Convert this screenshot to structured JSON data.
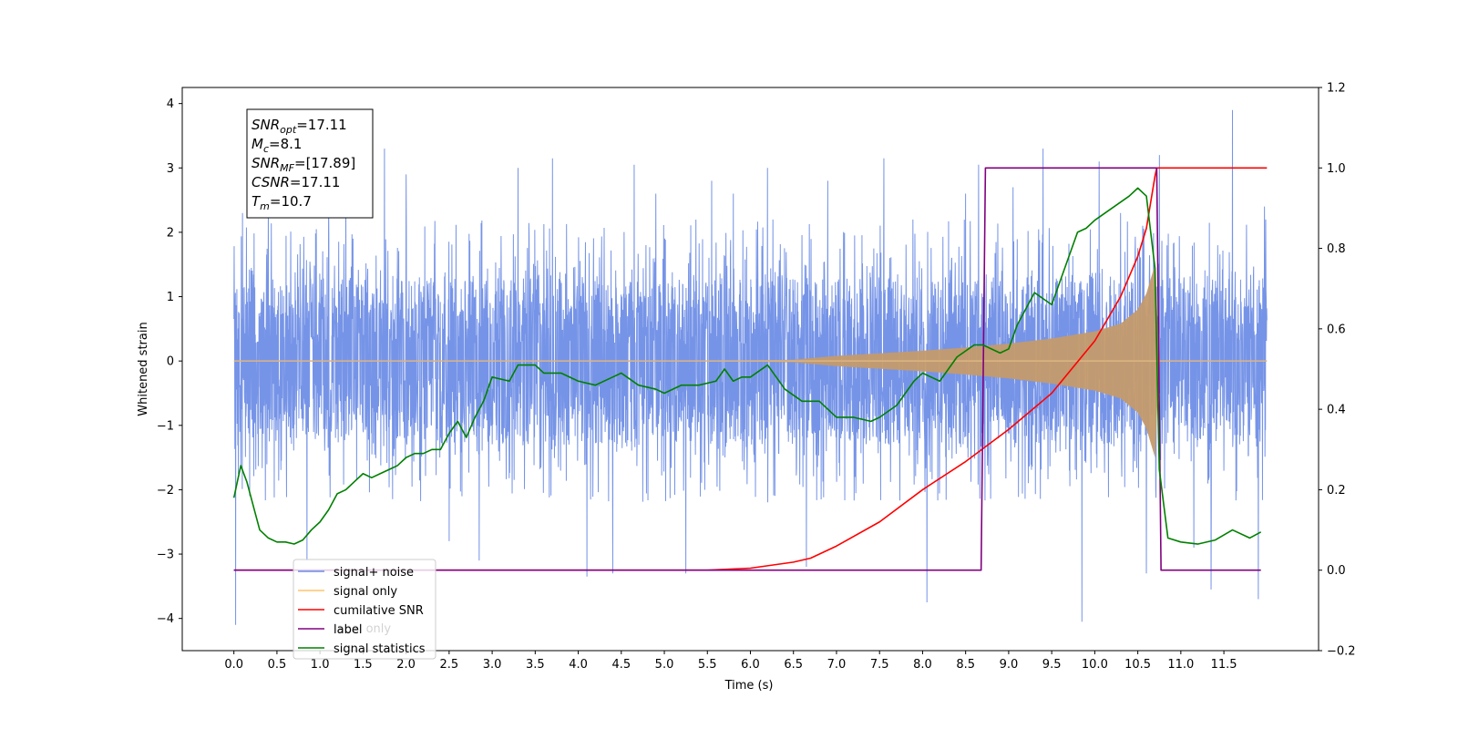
{
  "chart_data": {
    "type": "line",
    "xlabel": "Time (s)",
    "ylabel": "Whitened strain",
    "xlim": [
      -0.6,
      12.6
    ],
    "ylim_left": [
      -4.5,
      4.25
    ],
    "ylim_right": [
      -0.2,
      1.2
    ],
    "x_ticks": [
      0.0,
      0.5,
      1.0,
      1.5,
      2.0,
      2.5,
      3.0,
      3.5,
      4.0,
      4.5,
      5.0,
      5.5,
      6.0,
      6.5,
      7.0,
      7.5,
      8.0,
      8.5,
      9.0,
      9.5,
      10.0,
      10.5,
      11.0,
      11.5
    ],
    "x_tick_labels": [
      "0.0",
      "0.5",
      "1.0",
      "1.5",
      "2.0",
      "2.5",
      "3.0",
      "3.5",
      "4.0",
      "4.5",
      "5.0",
      "5.5",
      "6.0",
      "6.5",
      "7.0",
      "7.5",
      "8.0",
      "8.5",
      "9.0",
      "9.5",
      "10.0",
      "10.5",
      "11.0",
      "11.5"
    ],
    "y_ticks_left": [
      -4,
      -3,
      -2,
      -1,
      0,
      1,
      2,
      3,
      4
    ],
    "y_tick_labels_left": [
      "−4",
      "−3",
      "−2",
      "−1",
      "0",
      "1",
      "2",
      "3",
      "4"
    ],
    "y_ticks_right": [
      -0.2,
      0.0,
      0.2,
      0.4,
      0.6,
      0.8,
      1.0,
      1.2
    ],
    "y_tick_labels_right": [
      "−0.2",
      "0.0",
      "0.2",
      "0.4",
      "0.6",
      "0.8",
      "1.0",
      "1.2"
    ],
    "grid": false,
    "legend_position": "lower-left",
    "legend": [
      {
        "label": "signal+ noise",
        "color": "#6f8ee6"
      },
      {
        "label": "signal only",
        "color": "#ffc46b"
      },
      {
        "label": "cumilative SNR",
        "color": "#ff0000"
      },
      {
        "label": "label",
        "color": "#800080"
      },
      {
        "label": "signal statistics",
        "color": "#008000"
      }
    ],
    "hidden_legend_text": "label only",
    "annotation_lines": [
      {
        "base": "SNR",
        "sub": "opt",
        "rest": "=17.11"
      },
      {
        "base": "M",
        "sub": "c",
        "rest": "=8.1"
      },
      {
        "base": "SNR",
        "sub": "MF",
        "rest": "=[17.89]"
      },
      {
        "base": "CSNR",
        "sub": "",
        "rest": "=17.11"
      },
      {
        "base": "T",
        "sub": "m",
        "rest": "=10.7"
      }
    ],
    "series": [
      {
        "name": "signal+ noise",
        "axis": "left",
        "color": "#6f8ee6",
        "x_range": [
          0.0,
          12.0
        ],
        "typical_envelope": [
          -1.3,
          1.3
        ],
        "spikes": [
          {
            "x": 0.02,
            "y": -4.1
          },
          {
            "x": 0.1,
            "y": 2.3
          },
          {
            "x": 0.4,
            "y": 2.5
          },
          {
            "x": 0.85,
            "y": -3.1
          },
          {
            "x": 1.1,
            "y": 2.5
          },
          {
            "x": 1.3,
            "y": 3.0
          },
          {
            "x": 1.75,
            "y": 3.3
          },
          {
            "x": 2.0,
            "y": 2.9
          },
          {
            "x": 2.5,
            "y": -2.8
          },
          {
            "x": 2.85,
            "y": -3.1
          },
          {
            "x": 3.3,
            "y": 3.0
          },
          {
            "x": 3.7,
            "y": 3.15
          },
          {
            "x": 4.1,
            "y": -3.35
          },
          {
            "x": 4.4,
            "y": -3.3
          },
          {
            "x": 4.65,
            "y": 3.05
          },
          {
            "x": 4.9,
            "y": 2.6
          },
          {
            "x": 5.25,
            "y": -3.3
          },
          {
            "x": 5.55,
            "y": 2.8
          },
          {
            "x": 5.8,
            "y": 2.6
          },
          {
            "x": 6.2,
            "y": 3.0
          },
          {
            "x": 6.65,
            "y": -3.2
          },
          {
            "x": 6.9,
            "y": 2.8
          },
          {
            "x": 7.55,
            "y": 3.15
          },
          {
            "x": 8.05,
            "y": -3.75
          },
          {
            "x": 8.5,
            "y": 2.6
          },
          {
            "x": 8.65,
            "y": 3.05
          },
          {
            "x": 9.05,
            "y": 2.7
          },
          {
            "x": 9.4,
            "y": 3.3
          },
          {
            "x": 9.85,
            "y": -4.05
          },
          {
            "x": 10.05,
            "y": 3.1
          },
          {
            "x": 10.3,
            "y": 2.3
          },
          {
            "x": 10.6,
            "y": -3.3
          },
          {
            "x": 10.75,
            "y": 3.2
          },
          {
            "x": 11.15,
            "y": -2.9
          },
          {
            "x": 11.35,
            "y": -3.55
          },
          {
            "x": 11.6,
            "y": 3.9
          },
          {
            "x": 11.9,
            "y": -3.7
          },
          {
            "x": 11.97,
            "y": 2.4
          }
        ]
      },
      {
        "name": "signal only",
        "axis": "left",
        "color": "#ffc46b",
        "x": [
          0.0,
          5.5,
          6.5,
          7.0,
          7.5,
          8.0,
          8.5,
          9.0,
          9.5,
          10.0,
          10.3,
          10.5,
          10.6,
          10.7,
          10.75,
          12.0
        ],
        "amplitude": [
          0.0,
          0.0,
          0.02,
          0.08,
          0.12,
          0.16,
          0.21,
          0.27,
          0.35,
          0.46,
          0.58,
          0.8,
          1.05,
          1.5,
          0.0,
          0.0
        ]
      },
      {
        "name": "cumilative SNR",
        "axis": "right",
        "color": "#ff0000",
        "x": [
          0.0,
          5.5,
          6.0,
          6.5,
          6.7,
          7.0,
          7.5,
          8.0,
          8.5,
          9.0,
          9.5,
          10.0,
          10.3,
          10.5,
          10.6,
          10.7,
          10.72,
          12.0
        ],
        "values": [
          0.0,
          0.0,
          0.005,
          0.02,
          0.03,
          0.06,
          0.12,
          0.2,
          0.27,
          0.35,
          0.44,
          0.57,
          0.68,
          0.78,
          0.85,
          0.98,
          1.0,
          1.0
        ]
      },
      {
        "name": "label",
        "axis": "right",
        "color": "#800080",
        "x": [
          0.0,
          8.68,
          8.73,
          10.72,
          10.77,
          11.93
        ],
        "values": [
          0.0,
          0.0,
          1.0,
          1.0,
          0.0,
          0.0
        ]
      },
      {
        "name": "signal statistics",
        "axis": "right",
        "color": "#008000",
        "x": [
          0.0,
          0.08,
          0.15,
          0.25,
          0.3,
          0.4,
          0.5,
          0.6,
          0.7,
          0.8,
          0.9,
          1.0,
          1.1,
          1.2,
          1.3,
          1.4,
          1.5,
          1.6,
          1.7,
          1.8,
          1.9,
          2.0,
          2.1,
          2.2,
          2.3,
          2.4,
          2.5,
          2.6,
          2.7,
          2.8,
          2.9,
          3.0,
          3.2,
          3.3,
          3.5,
          3.6,
          3.8,
          4.0,
          4.2,
          4.4,
          4.5,
          4.7,
          4.9,
          5.0,
          5.2,
          5.4,
          5.6,
          5.7,
          5.8,
          5.9,
          6.0,
          6.2,
          6.4,
          6.6,
          6.8,
          7.0,
          7.2,
          7.4,
          7.5,
          7.7,
          7.9,
          8.0,
          8.2,
          8.4,
          8.6,
          8.7,
          8.9,
          9.0,
          9.1,
          9.3,
          9.5,
          9.6,
          9.8,
          9.9,
          10.0,
          10.2,
          10.4,
          10.5,
          10.6,
          10.7,
          10.75,
          10.85,
          11.0,
          11.2,
          11.4,
          11.6,
          11.8,
          11.93
        ],
        "values": [
          0.18,
          0.26,
          0.22,
          0.14,
          0.1,
          0.08,
          0.07,
          0.07,
          0.065,
          0.075,
          0.1,
          0.12,
          0.15,
          0.19,
          0.2,
          0.22,
          0.24,
          0.23,
          0.24,
          0.25,
          0.26,
          0.28,
          0.29,
          0.29,
          0.3,
          0.3,
          0.34,
          0.37,
          0.33,
          0.38,
          0.42,
          0.48,
          0.47,
          0.51,
          0.51,
          0.49,
          0.49,
          0.47,
          0.46,
          0.48,
          0.49,
          0.46,
          0.45,
          0.44,
          0.46,
          0.46,
          0.47,
          0.5,
          0.47,
          0.48,
          0.48,
          0.51,
          0.45,
          0.42,
          0.42,
          0.38,
          0.38,
          0.37,
          0.38,
          0.41,
          0.47,
          0.49,
          0.47,
          0.53,
          0.56,
          0.56,
          0.54,
          0.55,
          0.61,
          0.69,
          0.66,
          0.72,
          0.84,
          0.85,
          0.87,
          0.9,
          0.93,
          0.95,
          0.93,
          0.75,
          0.25,
          0.08,
          0.07,
          0.065,
          0.075,
          0.1,
          0.08,
          0.095
        ]
      }
    ]
  }
}
